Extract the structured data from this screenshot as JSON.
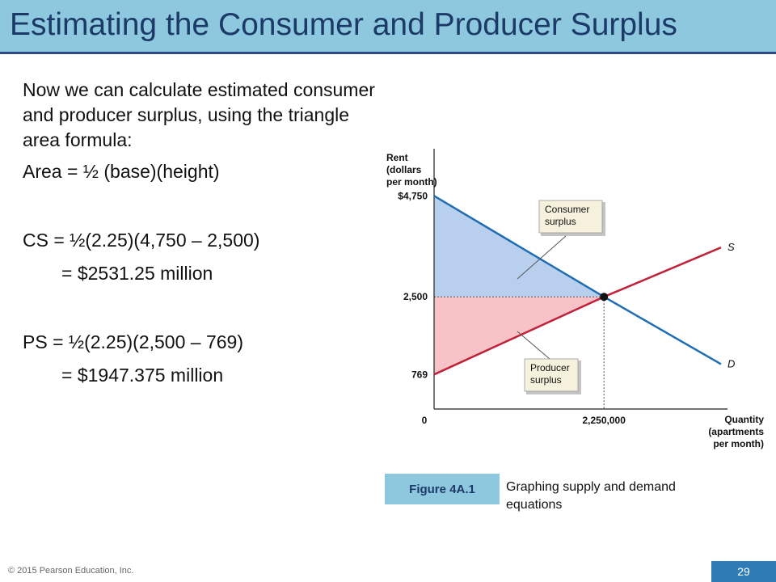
{
  "slide": {
    "title": "Estimating the Consumer and Producer Surplus",
    "body": {
      "intro": "Now we can calculate estimated consumer and producer surplus, using the triangle area formula:",
      "formula": "Area = ½ (base)(height)",
      "cs_line1": "CS = ½(2.25)(4,750 – 2,500)",
      "cs_line2": "= $2531.25  million",
      "ps_line1": "PS = ½(2.25)(2,500 – 769)",
      "ps_line2": "= $1947.375  million"
    },
    "figure_label": "Figure 4A.1",
    "figure_caption": "Graphing supply and demand equations",
    "copyright": "© 2015 Pearson Education, Inc.",
    "page_number": "29"
  },
  "colors": {
    "title_bar": "#8ec8de",
    "title_text": "#1c3a68",
    "title_rule": "#2a4b86",
    "demand": "#1f6db3",
    "supply": "#c0223a",
    "consumer_fill": "#b8cfee",
    "producer_fill": "#f7c3c7",
    "page_badge": "#2e7bb6"
  },
  "chart_data": {
    "type": "line",
    "ylabel": "Rent (dollars per month)",
    "xlabel": "Quantity (apartments per month)",
    "y_tick_labels": [
      "$4,750",
      "2,500",
      "769"
    ],
    "x_tick_labels": [
      "0",
      "2,250,000"
    ],
    "series": [
      {
        "name": "D",
        "x": [
          0,
          2250000,
          3800000
        ],
        "y": [
          4750,
          2500,
          1000
        ]
      },
      {
        "name": "S",
        "x": [
          0,
          2250000,
          3800000
        ],
        "y": [
          769,
          2500,
          3600
        ]
      }
    ],
    "equilibrium": {
      "x": 2250000,
      "y": 2500
    },
    "areas": [
      {
        "name": "Consumer surplus",
        "polygon_x": [
          0,
          0,
          2250000
        ],
        "polygon_y": [
          4750,
          2500,
          2500
        ]
      },
      {
        "name": "Producer surplus",
        "polygon_x": [
          0,
          0,
          2250000
        ],
        "polygon_y": [
          2500,
          769,
          2500
        ]
      }
    ],
    "callouts": [
      "Consumer surplus",
      "Producer surplus"
    ],
    "xlim": [
      0,
      4100000
    ],
    "ylim": [
      0,
      5800
    ],
    "grid": false
  }
}
